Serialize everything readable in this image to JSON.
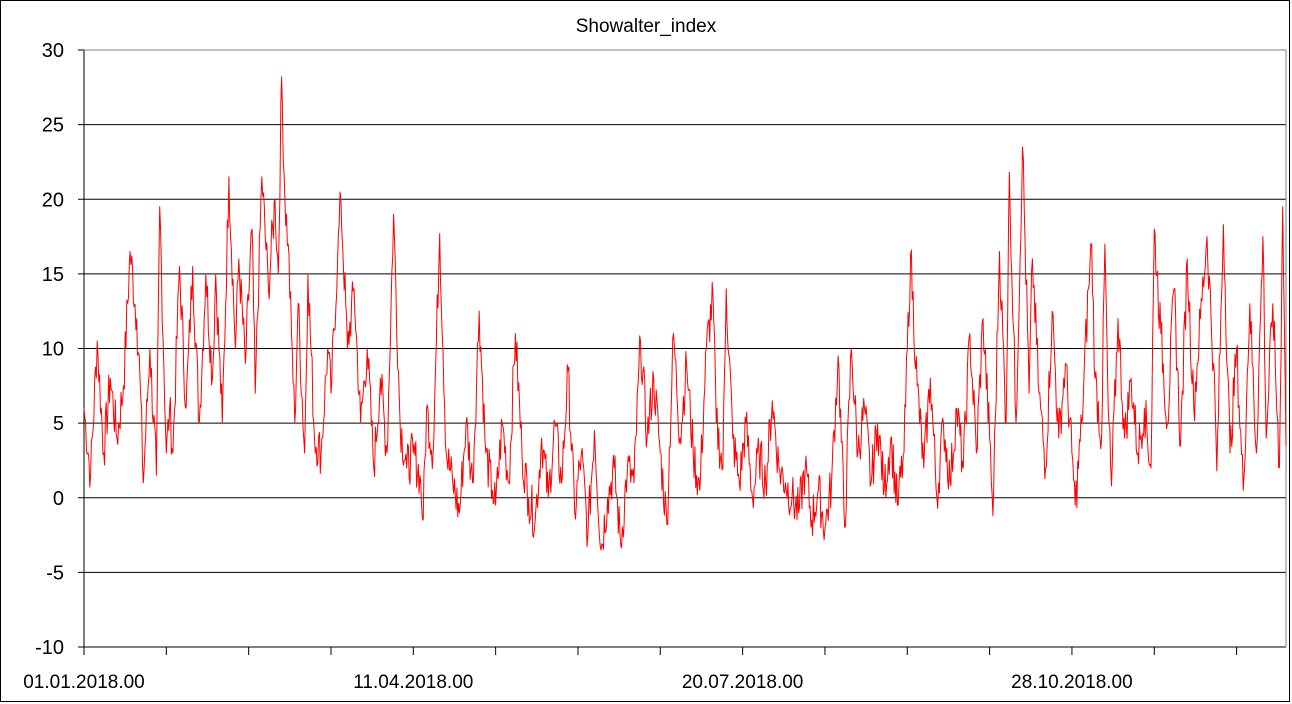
{
  "chart_data": {
    "type": "line",
    "title": "Showalter_index",
    "xlabel": "",
    "ylabel": "",
    "x_start": "01.01.2018.00",
    "x_end": "31.12.2018.00",
    "ylim": [
      -10,
      30
    ],
    "y_ticks": [
      "30",
      "25",
      "20",
      "15",
      "10",
      "5",
      "0",
      "-5",
      "-10"
    ],
    "x_tick_labels": [
      {
        "label": "01.01.2018.00",
        "day": 0
      },
      {
        "label": "11.04.2018.00",
        "day": 100
      },
      {
        "label": "20.07.2018.00",
        "day": 200
      },
      {
        "label": "28.10.2018.00",
        "day": 300
      }
    ],
    "x_minor_ticks_every_days": 25,
    "grid": "horizontal",
    "legend": "none",
    "series": [
      {
        "color": "#ff0000",
        "anchors": [
          [
            0,
            6
          ],
          [
            2,
            1.5
          ],
          [
            4,
            10.5
          ],
          [
            6,
            3
          ],
          [
            8,
            8
          ],
          [
            10,
            4
          ],
          [
            12,
            7.5
          ],
          [
            14,
            16.5
          ],
          [
            16,
            12
          ],
          [
            17,
            8
          ],
          [
            18,
            1
          ],
          [
            20,
            10
          ],
          [
            22,
            1.5
          ],
          [
            23,
            19.5
          ],
          [
            25,
            3
          ],
          [
            26,
            6
          ],
          [
            27,
            3
          ],
          [
            29,
            15.5
          ],
          [
            31,
            6
          ],
          [
            33,
            15.5
          ],
          [
            35,
            5
          ],
          [
            37,
            15
          ],
          [
            39,
            8
          ],
          [
            40,
            15
          ],
          [
            42,
            5
          ],
          [
            44,
            21.5
          ],
          [
            46,
            10
          ],
          [
            47,
            16
          ],
          [
            49,
            9
          ],
          [
            51,
            18
          ],
          [
            52,
            7
          ],
          [
            54,
            21.5
          ],
          [
            56,
            14
          ],
          [
            58,
            20
          ],
          [
            59,
            15
          ],
          [
            60,
            28.2
          ],
          [
            61,
            20
          ],
          [
            62,
            17
          ],
          [
            63,
            11
          ],
          [
            64,
            5
          ],
          [
            65,
            13
          ],
          [
            67,
            3
          ],
          [
            68,
            15
          ],
          [
            70,
            4
          ],
          [
            72,
            3
          ],
          [
            74,
            10
          ],
          [
            75,
            7
          ],
          [
            77,
            16
          ],
          [
            78,
            20
          ],
          [
            80,
            10
          ],
          [
            82,
            14
          ],
          [
            84,
            5
          ],
          [
            86,
            10
          ],
          [
            88,
            2
          ],
          [
            90,
            8
          ],
          [
            92,
            3
          ],
          [
            94,
            19
          ],
          [
            96,
            5
          ],
          [
            98,
            2
          ],
          [
            100,
            3
          ],
          [
            102,
            1.5
          ],
          [
            103,
            -1.5
          ],
          [
            104,
            6
          ],
          [
            106,
            3
          ],
          [
            108,
            17.7
          ],
          [
            110,
            3
          ],
          [
            112,
            1
          ],
          [
            114,
            -1
          ],
          [
            116,
            5
          ],
          [
            118,
            1
          ],
          [
            120,
            12.5
          ],
          [
            122,
            3
          ],
          [
            124,
            0.5
          ],
          [
            125,
            -0.5
          ],
          [
            127,
            5
          ],
          [
            129,
            1
          ],
          [
            131,
            11
          ],
          [
            133,
            3
          ],
          [
            135,
            0
          ],
          [
            137,
            -1.5
          ],
          [
            139,
            4
          ],
          [
            141,
            0
          ],
          [
            143,
            5
          ],
          [
            145,
            1
          ],
          [
            147,
            8.5
          ],
          [
            149,
            -1
          ],
          [
            151,
            3
          ],
          [
            153,
            -2.5
          ],
          [
            155,
            4.5
          ],
          [
            157,
            -3.5
          ],
          [
            159,
            0
          ],
          [
            161,
            2
          ],
          [
            163,
            -3.2
          ],
          [
            165,
            2
          ],
          [
            167,
            1
          ],
          [
            169,
            10.5
          ],
          [
            171,
            4
          ],
          [
            173,
            8
          ],
          [
            175,
            3
          ],
          [
            177,
            -1.8
          ],
          [
            179,
            11
          ],
          [
            181,
            4
          ],
          [
            183,
            9
          ],
          [
            185,
            3
          ],
          [
            187,
            0.5
          ],
          [
            189,
            10
          ],
          [
            191,
            13.5
          ],
          [
            192,
            5
          ],
          [
            194,
            2
          ],
          [
            195,
            14
          ],
          [
            197,
            4
          ],
          [
            199,
            1
          ],
          [
            201,
            5
          ],
          [
            203,
            0
          ],
          [
            205,
            3
          ],
          [
            207,
            1
          ],
          [
            209,
            6.5
          ],
          [
            211,
            2
          ],
          [
            213,
            1
          ],
          [
            215,
            0
          ],
          [
            217,
            -1
          ],
          [
            219,
            2
          ],
          [
            221,
            -1.5
          ],
          [
            223,
            0.5
          ],
          [
            225,
            -2
          ],
          [
            227,
            1
          ],
          [
            229,
            9.5
          ],
          [
            231,
            -2
          ],
          [
            233,
            10
          ],
          [
            235,
            3
          ],
          [
            237,
            6
          ],
          [
            239,
            1
          ],
          [
            241,
            5
          ],
          [
            243,
            0.5
          ],
          [
            245,
            4
          ],
          [
            247,
            -0.5
          ],
          [
            249,
            3
          ],
          [
            251,
            16.3
          ],
          [
            253,
            7.5
          ],
          [
            255,
            2
          ],
          [
            257,
            8
          ],
          [
            259,
            0
          ],
          [
            261,
            5
          ],
          [
            263,
            1
          ],
          [
            265,
            6
          ],
          [
            267,
            2
          ],
          [
            269,
            11
          ],
          [
            271,
            3
          ],
          [
            273,
            12
          ],
          [
            275,
            4
          ],
          [
            276,
            -1.2
          ],
          [
            278,
            16.5
          ],
          [
            280,
            5
          ],
          [
            281,
            21.8
          ],
          [
            283,
            5
          ],
          [
            285,
            23.5
          ],
          [
            287,
            7
          ],
          [
            288,
            16
          ],
          [
            290,
            7
          ],
          [
            292,
            2
          ],
          [
            294,
            12.5
          ],
          [
            296,
            4
          ],
          [
            298,
            9
          ],
          [
            300,
            3
          ],
          [
            301,
            -0.5
          ],
          [
            303,
            5
          ],
          [
            305,
            14
          ],
          [
            306,
            17
          ],
          [
            307,
            8
          ],
          [
            309,
            4
          ],
          [
            310,
            17
          ],
          [
            311,
            6
          ],
          [
            312,
            0.8
          ],
          [
            314,
            12
          ],
          [
            316,
            4
          ],
          [
            318,
            8
          ],
          [
            320,
            3
          ],
          [
            322,
            6
          ],
          [
            324,
            2
          ],
          [
            325,
            18
          ],
          [
            327,
            11
          ],
          [
            329,
            5
          ],
          [
            331,
            14
          ],
          [
            333,
            3.5
          ],
          [
            335,
            16
          ],
          [
            337,
            6
          ],
          [
            339,
            12
          ],
          [
            341,
            17.5
          ],
          [
            343,
            9
          ],
          [
            344,
            1.8
          ],
          [
            346,
            18.3
          ],
          [
            348,
            3
          ],
          [
            350,
            10
          ],
          [
            352,
            0.5
          ],
          [
            354,
            13
          ],
          [
            356,
            3
          ],
          [
            358,
            17.5
          ],
          [
            359,
            4
          ],
          [
            361,
            13
          ],
          [
            363,
            2
          ],
          [
            364,
            19.5
          ],
          [
            365,
            3.5
          ]
        ]
      }
    ]
  }
}
